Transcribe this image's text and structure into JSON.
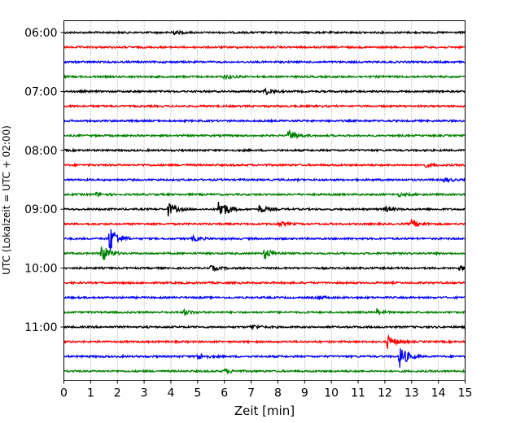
{
  "chart_data": {
    "type": "line",
    "xlabel": "Zeit  [min]",
    "ylabel": "UTC (Lokalzeit = UTC + 02:00)",
    "xlim": [
      0,
      15
    ],
    "x_ticks": [
      0,
      1,
      2,
      3,
      4,
      5,
      6,
      7,
      8,
      9,
      10,
      11,
      12,
      13,
      14,
      15
    ],
    "y_tick_labels": [
      "06:00",
      "07:00",
      "08:00",
      "09:00",
      "10:00",
      "11:00"
    ],
    "grid": "vertical dotted",
    "trace_interval_minutes": 15,
    "series_colors": [
      "#000000",
      "#ff0000",
      "#0000ff",
      "#008000"
    ],
    "traces": [
      {
        "start": "06:00",
        "color": "#000000",
        "events": [
          {
            "t": 4.0,
            "amp": 3
          }
        ]
      },
      {
        "start": "06:15",
        "color": "#ff0000",
        "events": []
      },
      {
        "start": "06:30",
        "color": "#0000ff",
        "events": []
      },
      {
        "start": "06:45",
        "color": "#008000",
        "events": [
          {
            "t": 6.0,
            "amp": 3
          }
        ]
      },
      {
        "start": "07:00",
        "color": "#000000",
        "events": [
          {
            "t": 7.5,
            "amp": 4
          }
        ]
      },
      {
        "start": "07:15",
        "color": "#ff0000",
        "events": []
      },
      {
        "start": "07:30",
        "color": "#0000ff",
        "events": []
      },
      {
        "start": "07:45",
        "color": "#008000",
        "events": [
          {
            "t": 8.4,
            "amp": 7
          }
        ]
      },
      {
        "start": "08:00",
        "color": "#000000",
        "events": []
      },
      {
        "start": "08:15",
        "color": "#ff0000",
        "events": [
          {
            "t": 13.5,
            "amp": 2
          }
        ]
      },
      {
        "start": "08:30",
        "color": "#0000ff",
        "events": [
          {
            "t": 14.2,
            "amp": 3
          }
        ]
      },
      {
        "start": "08:45",
        "color": "#008000",
        "events": [
          {
            "t": 1.2,
            "amp": 2
          },
          {
            "t": 12.5,
            "amp": 2
          }
        ]
      },
      {
        "start": "09:00",
        "color": "#000000",
        "events": [
          {
            "t": 3.9,
            "amp": 8
          },
          {
            "t": 5.8,
            "amp": 15
          },
          {
            "t": 7.3,
            "amp": 5
          },
          {
            "t": 12.0,
            "amp": 3
          }
        ]
      },
      {
        "start": "09:15",
        "color": "#ff0000",
        "events": [
          {
            "t": 8.0,
            "amp": 3
          },
          {
            "t": 13.0,
            "amp": 5
          }
        ]
      },
      {
        "start": "09:30",
        "color": "#0000ff",
        "events": [
          {
            "t": 1.7,
            "amp": 18
          },
          {
            "t": 4.8,
            "amp": 3
          }
        ]
      },
      {
        "start": "09:45",
        "color": "#008000",
        "events": [
          {
            "t": 1.4,
            "amp": 12
          },
          {
            "t": 7.5,
            "amp": 7
          }
        ]
      },
      {
        "start": "10:00",
        "color": "#000000",
        "events": [
          {
            "t": 5.5,
            "amp": 3
          },
          {
            "t": 14.8,
            "amp": 3
          }
        ]
      },
      {
        "start": "10:15",
        "color": "#ff0000",
        "events": []
      },
      {
        "start": "10:30",
        "color": "#0000ff",
        "events": [
          {
            "t": 9.5,
            "amp": 2
          }
        ]
      },
      {
        "start": "10:45",
        "color": "#008000",
        "events": [
          {
            "t": 4.5,
            "amp": 3
          },
          {
            "t": 11.7,
            "amp": 3
          }
        ]
      },
      {
        "start": "11:00",
        "color": "#000000",
        "events": [
          {
            "t": 7.0,
            "amp": 3
          }
        ]
      },
      {
        "start": "11:15",
        "color": "#ff0000",
        "events": [
          {
            "t": 12.1,
            "amp": 8
          }
        ]
      },
      {
        "start": "11:30",
        "color": "#0000ff",
        "events": [
          {
            "t": 5.0,
            "amp": 4
          },
          {
            "t": 12.55,
            "amp": 15
          }
        ]
      },
      {
        "start": "11:45",
        "color": "#008000",
        "events": [
          {
            "t": 6.0,
            "amp": 3
          }
        ]
      }
    ]
  }
}
